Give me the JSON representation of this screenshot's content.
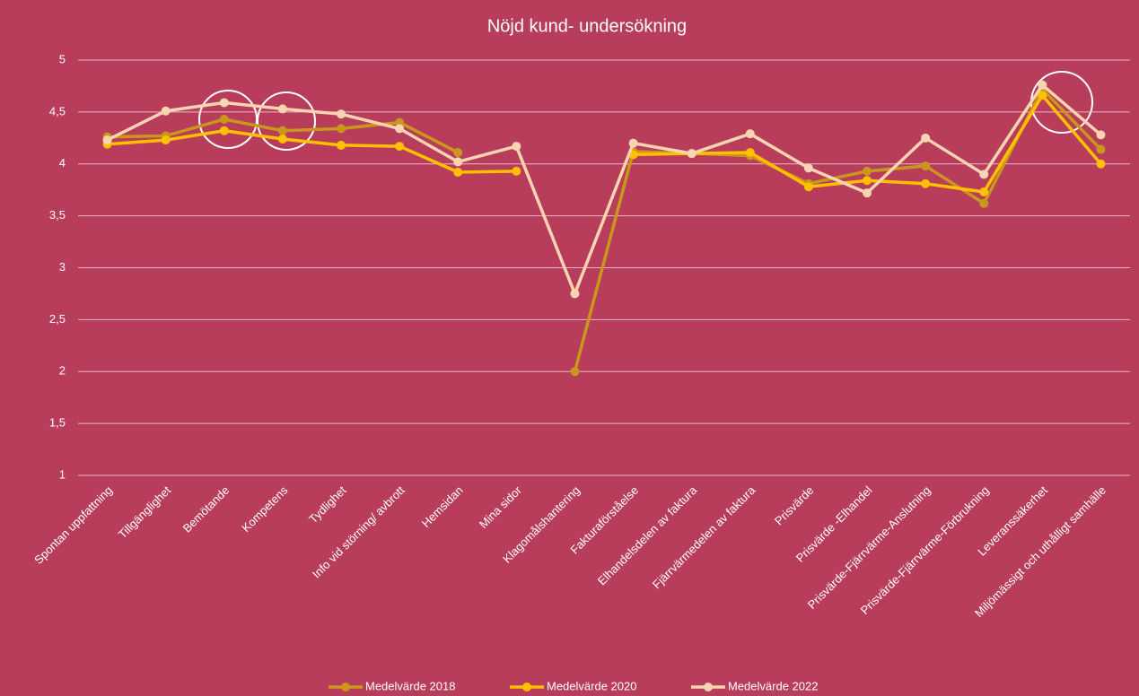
{
  "chart_data": {
    "type": "line",
    "title": "Nöjd kund- undersökning",
    "categories": [
      "Spontan uppfattning",
      "Tillgänglighet",
      "Bemötande",
      "Kompetens",
      "Tydlighet",
      "Info vid störning/ avbrott",
      "Hemsidan",
      "Mina sidor",
      "Klagomålshantering",
      "Fakturaförståelse",
      "Elhandelsdelen av faktura",
      "Fjärrvärmedelen av faktura",
      "Prisvärde",
      "Prisvärde -Elhandel",
      "Prisvärde-Fjärrvärme-Anslutning",
      "Prisvärde-Fjärrvärme-Förbrukning",
      "Leveranssäkerhet",
      "Miljömässigt och uthålligt samhälle"
    ],
    "series": [
      {
        "name": "Medelvärde 2018",
        "color": "#c9971b",
        "values": [
          4.26,
          4.27,
          4.43,
          4.32,
          4.34,
          4.4,
          4.11,
          null,
          2.0,
          4.12,
          4.1,
          4.08,
          3.81,
          3.93,
          3.98,
          3.62,
          4.72,
          4.14
        ]
      },
      {
        "name": "Medelvärde 2020",
        "color": "#ffc000",
        "values": [
          4.19,
          4.23,
          4.32,
          4.24,
          4.18,
          4.17,
          3.92,
          3.93,
          null,
          4.09,
          4.1,
          4.11,
          3.78,
          3.84,
          3.81,
          3.73,
          4.66,
          4.0
        ]
      },
      {
        "name": "Medelvärde 2022",
        "color": "#f9d4b2",
        "values": [
          4.23,
          4.51,
          4.59,
          4.53,
          4.48,
          4.34,
          4.02,
          4.17,
          2.75,
          4.2,
          4.1,
          4.29,
          3.96,
          3.72,
          4.25,
          3.9,
          4.76,
          4.28
        ]
      }
    ],
    "ylim": [
      1,
      5
    ],
    "yticks": [
      1,
      {
        "value": 1.5,
        "label": "1,5"
      },
      2,
      {
        "value": 2.5,
        "label": "2,5"
      },
      3,
      {
        "value": 3.5,
        "label": "3,5"
      },
      4,
      {
        "value": 4.5,
        "label": "4,5"
      },
      5
    ],
    "grid": true,
    "legend": "bottom"
  }
}
